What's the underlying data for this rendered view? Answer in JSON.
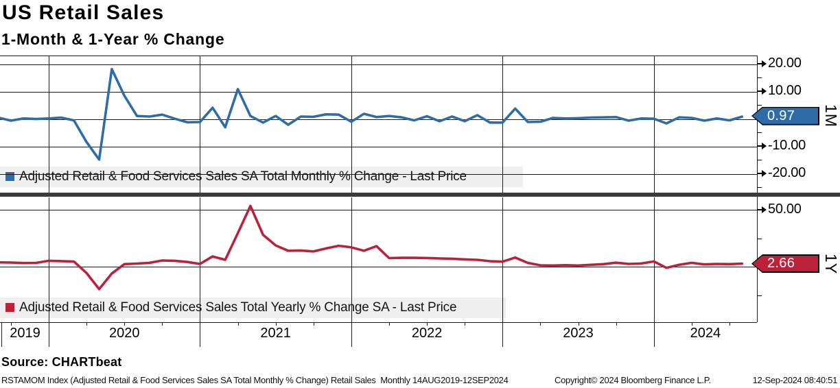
{
  "header": {
    "title": "US Retail Sales",
    "subtitle": "1-Month & 1-Year % Change"
  },
  "source_line": "Source: CHARTbeat",
  "footer": {
    "left": "RSTAMOM Index (Adjusted Retail & Food Services Sales SA Total Monthly % Change) Retail Sales  Monthly 14AUG2019-12SEP2024",
    "copyright": "Copyright© 2024 Bloomberg Finance L.P.",
    "datetime": "12-Sep-2024 08:40:51"
  },
  "colors": {
    "blue_line": "#2e6ca8",
    "red_line": "#bb2239",
    "legend_bg": "#efefef",
    "separator": "#3c3c3c",
    "grid": "#1a1a1a"
  },
  "x_axis": {
    "years": [
      "2019",
      "2020",
      "2021",
      "2022",
      "2023",
      "2024"
    ]
  },
  "chart_data": [
    {
      "type": "line",
      "panel": "top",
      "legend": "Adjusted Retail & Food Services Sales SA Total Monthly % Change - Last Price",
      "axis_side_label": "1M",
      "last_price": "0.97",
      "line_color": "#2e6ca8",
      "ylim": [
        -27.5,
        23
      ],
      "ytick_values": [
        20,
        10,
        -10,
        -20
      ],
      "ytick_labels": [
        "20.00",
        "10.00",
        "-10.00",
        "-20.00"
      ],
      "gridline_values": [
        20,
        10,
        0,
        -10,
        -20
      ],
      "minor_tick_values": [
        15,
        5,
        -5,
        -15,
        -25
      ],
      "x": [
        "2019-08",
        "2019-09",
        "2019-10",
        "2019-11",
        "2019-12",
        "2020-01",
        "2020-02",
        "2020-03",
        "2020-04",
        "2020-05",
        "2020-06",
        "2020-07",
        "2020-08",
        "2020-09",
        "2020-10",
        "2020-11",
        "2020-12",
        "2021-01",
        "2021-02",
        "2021-03",
        "2021-04",
        "2021-05",
        "2021-06",
        "2021-07",
        "2021-08",
        "2021-09",
        "2021-10",
        "2021-11",
        "2021-12",
        "2022-01",
        "2022-02",
        "2022-03",
        "2022-04",
        "2022-05",
        "2022-06",
        "2022-07",
        "2022-08",
        "2022-09",
        "2022-10",
        "2022-11",
        "2022-12",
        "2023-01",
        "2023-02",
        "2023-03",
        "2023-04",
        "2023-05",
        "2023-06",
        "2023-07",
        "2023-08",
        "2023-09",
        "2023-10",
        "2023-11",
        "2023-12",
        "2024-01",
        "2024-02",
        "2024-03",
        "2024-04",
        "2024-05",
        "2024-06",
        "2024-07"
      ],
      "values": [
        0.6,
        -0.5,
        0.3,
        0.1,
        0.3,
        0.6,
        -0.4,
        -8.3,
        -14.7,
        18.3,
        8.6,
        1.2,
        1.0,
        1.7,
        0.2,
        -1.1,
        -1.0,
        4.2,
        -2.9,
        11.0,
        1.2,
        -1.2,
        1.2,
        -2.0,
        1.0,
        0.9,
        1.8,
        1.7,
        -0.9,
        2.0,
        0.8,
        1.2,
        0.7,
        -0.4,
        1.1,
        -0.7,
        1.0,
        -0.7,
        1.5,
        -1.2,
        -1.2,
        3.9,
        -1.0,
        -0.9,
        0.5,
        0.3,
        0.4,
        0.6,
        0.7,
        0.8,
        -0.5,
        0.3,
        0.2,
        -1.5,
        0.7,
        0.5,
        -0.5,
        0.3,
        -0.4,
        0.97
      ]
    },
    {
      "type": "line",
      "panel": "bottom",
      "legend": "Adjusted Retail & Food Services Sales Total Yearly % Change SA - Last Price",
      "axis_side_label": "1Y",
      "last_price": "2.66",
      "line_color": "#bb2239",
      "ylim": [
        -48.8,
        60.8
      ],
      "ytick_values": [
        50
      ],
      "ytick_labels": [
        "50.00"
      ],
      "gridline_values": [
        50,
        0
      ],
      "minor_tick_values": [
        25,
        -25
      ],
      "x": [
        "2019-08",
        "2019-09",
        "2019-10",
        "2019-11",
        "2019-12",
        "2020-01",
        "2020-02",
        "2020-03",
        "2020-04",
        "2020-05",
        "2020-06",
        "2020-07",
        "2020-08",
        "2020-09",
        "2020-10",
        "2020-11",
        "2020-12",
        "2021-01",
        "2021-02",
        "2021-03",
        "2021-04",
        "2021-05",
        "2021-06",
        "2021-07",
        "2021-08",
        "2021-09",
        "2021-10",
        "2021-11",
        "2021-12",
        "2022-01",
        "2022-02",
        "2022-03",
        "2022-04",
        "2022-05",
        "2022-06",
        "2022-07",
        "2022-08",
        "2022-09",
        "2022-10",
        "2022-11",
        "2022-12",
        "2023-01",
        "2023-02",
        "2023-03",
        "2023-04",
        "2023-05",
        "2023-06",
        "2023-07",
        "2023-08",
        "2023-09",
        "2023-10",
        "2023-11",
        "2023-12",
        "2024-01",
        "2024-02",
        "2024-03",
        "2024-04",
        "2024-05",
        "2024-06",
        "2024-07"
      ],
      "values": [
        3.8,
        3.6,
        3.2,
        3.3,
        5.2,
        4.9,
        4.5,
        -5.6,
        -19.7,
        -6.0,
        2.2,
        2.7,
        3.4,
        5.4,
        5.2,
        4.1,
        2.4,
        9.0,
        6.0,
        29.5,
        53.4,
        28.0,
        18.7,
        14.0,
        14.2,
        13.4,
        16.0,
        18.4,
        17.0,
        14.0,
        18.0,
        7.5,
        7.8,
        7.8,
        7.6,
        7.2,
        7.0,
        6.4,
        6.0,
        4.8,
        4.4,
        8.0,
        3.3,
        1.2,
        1.0,
        1.3,
        1.0,
        1.6,
        2.2,
        3.5,
        2.4,
        2.8,
        4.6,
        -1.0,
        1.6,
        3.4,
        2.0,
        2.4,
        2.2,
        2.66
      ]
    }
  ]
}
